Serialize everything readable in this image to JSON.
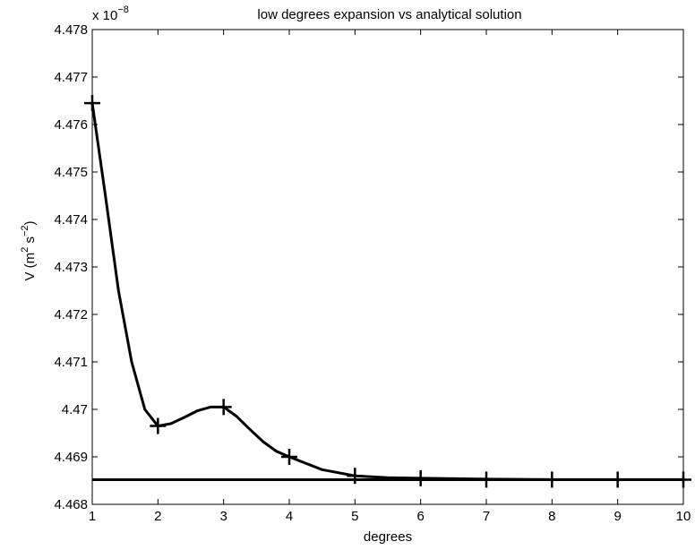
{
  "chart_data": {
    "type": "line",
    "title": "low degrees expansion vs analytical solution",
    "xlabel": "degrees",
    "ylabel": "V (m² s⁻²)",
    "ylabel_parts": {
      "base": "V (m",
      "sup1": "2",
      "mid": " s",
      "sup2": "−2",
      "end": ")"
    },
    "y_scale_label": {
      "base": "x 10",
      "exponent": "−8"
    },
    "xlim": [
      1,
      10
    ],
    "ylim": [
      4.468,
      4.478
    ],
    "x_ticks": [
      1,
      2,
      3,
      4,
      5,
      6,
      7,
      8,
      9,
      10
    ],
    "x_tick_labels": [
      "1",
      "2",
      "3",
      "4",
      "5",
      "6",
      "7",
      "8",
      "9",
      "10"
    ],
    "y_ticks": [
      4.468,
      4.469,
      4.47,
      4.471,
      4.472,
      4.473,
      4.474,
      4.475,
      4.476,
      4.477,
      4.478
    ],
    "y_tick_labels": [
      "4.468",
      "4.469",
      "4.47",
      "4.471",
      "4.472",
      "4.473",
      "4.474",
      "4.475",
      "4.476",
      "4.477",
      "4.478"
    ],
    "grid": false,
    "legend": "none",
    "series": [
      {
        "style": "line-with-plus-markers",
        "color": "#000000",
        "x": [
          1,
          2,
          3,
          4,
          5,
          6,
          7,
          8,
          9,
          10
        ],
        "y": [
          4.47645,
          4.46965,
          4.47005,
          4.469,
          4.4686,
          4.46855,
          4.46852,
          4.46852,
          4.46852,
          4.46852
        ],
        "curve_x": [
          1,
          1.2,
          1.4,
          1.6,
          1.8,
          2,
          2.2,
          2.4,
          2.6,
          2.8,
          3,
          3.2,
          3.4,
          3.6,
          3.8,
          4,
          4.5,
          5,
          5.5,
          6,
          7,
          8,
          9,
          10
        ],
        "curve_y": [
          4.47645,
          4.4745,
          4.4725,
          4.471,
          4.47,
          4.46965,
          4.4697,
          4.46983,
          4.46997,
          4.47005,
          4.47005,
          4.46985,
          4.46958,
          4.46932,
          4.46912,
          4.469,
          4.46873,
          4.4686,
          4.46856,
          4.46855,
          4.46853,
          4.46852,
          4.46852,
          4.46852
        ]
      },
      {
        "style": "horizontal-line",
        "color": "#000000",
        "y_const": 4.46852
      }
    ]
  }
}
